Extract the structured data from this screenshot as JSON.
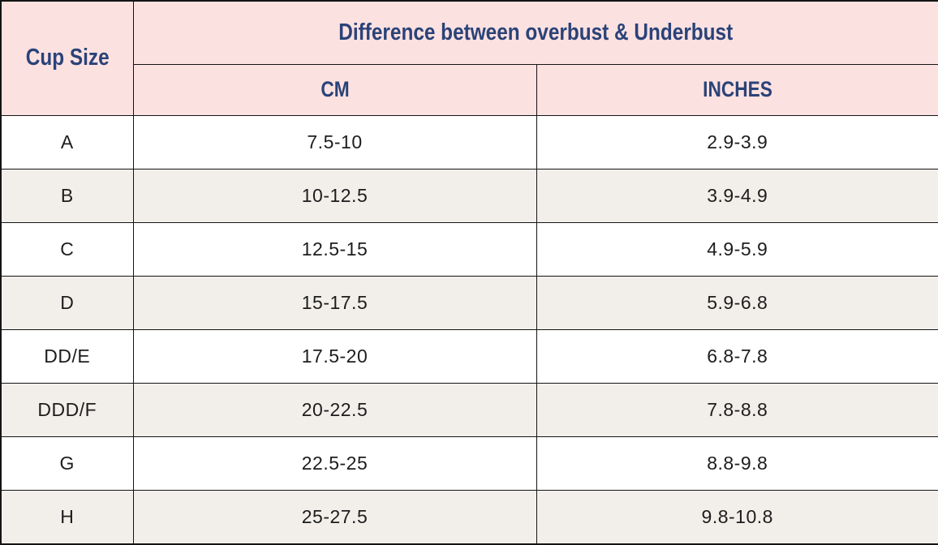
{
  "chart_data": {
    "type": "table",
    "title": "Difference between overbust & Underbust",
    "columns": [
      "Cup Size",
      "CM",
      "INCHES"
    ],
    "rows": [
      {
        "cup": "A",
        "cm": "7.5-10",
        "inches": "2.9-3.9"
      },
      {
        "cup": "B",
        "cm": "10-12.5",
        "inches": "3.9-4.9"
      },
      {
        "cup": "C",
        "cm": "12.5-15",
        "inches": "4.9-5.9"
      },
      {
        "cup": "D",
        "cm": "15-17.5",
        "inches": "5.9-6.8"
      },
      {
        "cup": "DD/E",
        "cm": "17.5-20",
        "inches": "6.8-7.8"
      },
      {
        "cup": "DDD/F",
        "cm": "20-22.5",
        "inches": "7.8-8.8"
      },
      {
        "cup": "G",
        "cm": "22.5-25",
        "inches": "8.8-9.8"
      },
      {
        "cup": "H",
        "cm": "25-27.5",
        "inches": "9.8-10.8"
      }
    ]
  },
  "table": {
    "header": {
      "cup_size_label": "Cup Size",
      "difference_label": "Difference between overbust & Underbust",
      "cm_label": "CM",
      "inches_label": "INCHES"
    }
  },
  "colors": {
    "header_bg": "#fce1e1",
    "header_text": "#2a4378",
    "row_bg": "#ffffff",
    "row_alt_bg": "#f2efeb",
    "body_text": "#1d1d1d",
    "border": "#141414"
  }
}
